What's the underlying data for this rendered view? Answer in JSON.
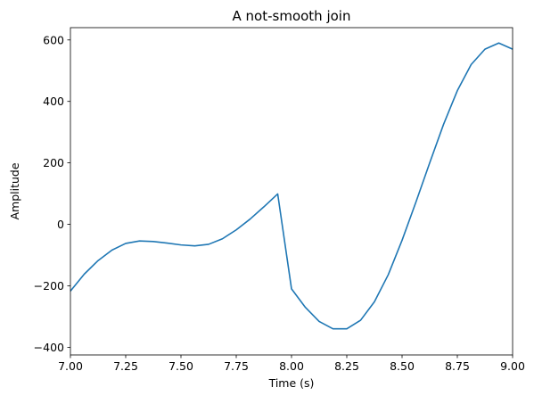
{
  "chart_data": {
    "type": "line",
    "title": "A not-smooth join",
    "xlabel": "Time (s)",
    "ylabel": "Amplitude",
    "xlim": [
      7.0,
      9.0
    ],
    "ylim": [
      -425,
      640
    ],
    "grid": false,
    "color": "#1f77b4",
    "xticks": [
      {
        "value": 7.0,
        "label": "7.00"
      },
      {
        "value": 7.25,
        "label": "7.25"
      },
      {
        "value": 7.5,
        "label": "7.50"
      },
      {
        "value": 7.75,
        "label": "7.75"
      },
      {
        "value": 8.0,
        "label": "8.00"
      },
      {
        "value": 8.25,
        "label": "8.25"
      },
      {
        "value": 8.5,
        "label": "8.50"
      },
      {
        "value": 8.75,
        "label": "8.75"
      },
      {
        "value": 9.0,
        "label": "9.00"
      }
    ],
    "yticks": [
      {
        "value": -400,
        "label": "−400"
      },
      {
        "value": -200,
        "label": "−200"
      },
      {
        "value": 0,
        "label": "0"
      },
      {
        "value": 200,
        "label": "200"
      },
      {
        "value": 400,
        "label": "400"
      },
      {
        "value": 600,
        "label": "600"
      }
    ],
    "series": [
      {
        "x": [
          7.0,
          7.0625,
          7.125,
          7.1875,
          7.25,
          7.3125,
          7.375,
          7.4375,
          7.5,
          7.5625,
          7.625,
          7.6875,
          7.75,
          7.8125,
          7.875,
          7.9375,
          8.0,
          8.0625,
          8.125,
          8.1875,
          8.25,
          8.3125,
          8.375,
          8.4375,
          8.5,
          8.5625,
          8.625,
          8.6875,
          8.75,
          8.8125,
          8.875,
          8.9375,
          9.0
        ],
        "y": [
          -217,
          -162,
          -118,
          -84,
          -62,
          -54,
          -56,
          -61,
          -67,
          -70,
          -65,
          -47,
          -18,
          17,
          57,
          99,
          -210,
          -270,
          -316,
          -340,
          -340,
          -312,
          -252,
          -164,
          -52,
          72,
          200,
          325,
          435,
          520,
          570,
          590,
          570
        ]
      }
    ]
  }
}
